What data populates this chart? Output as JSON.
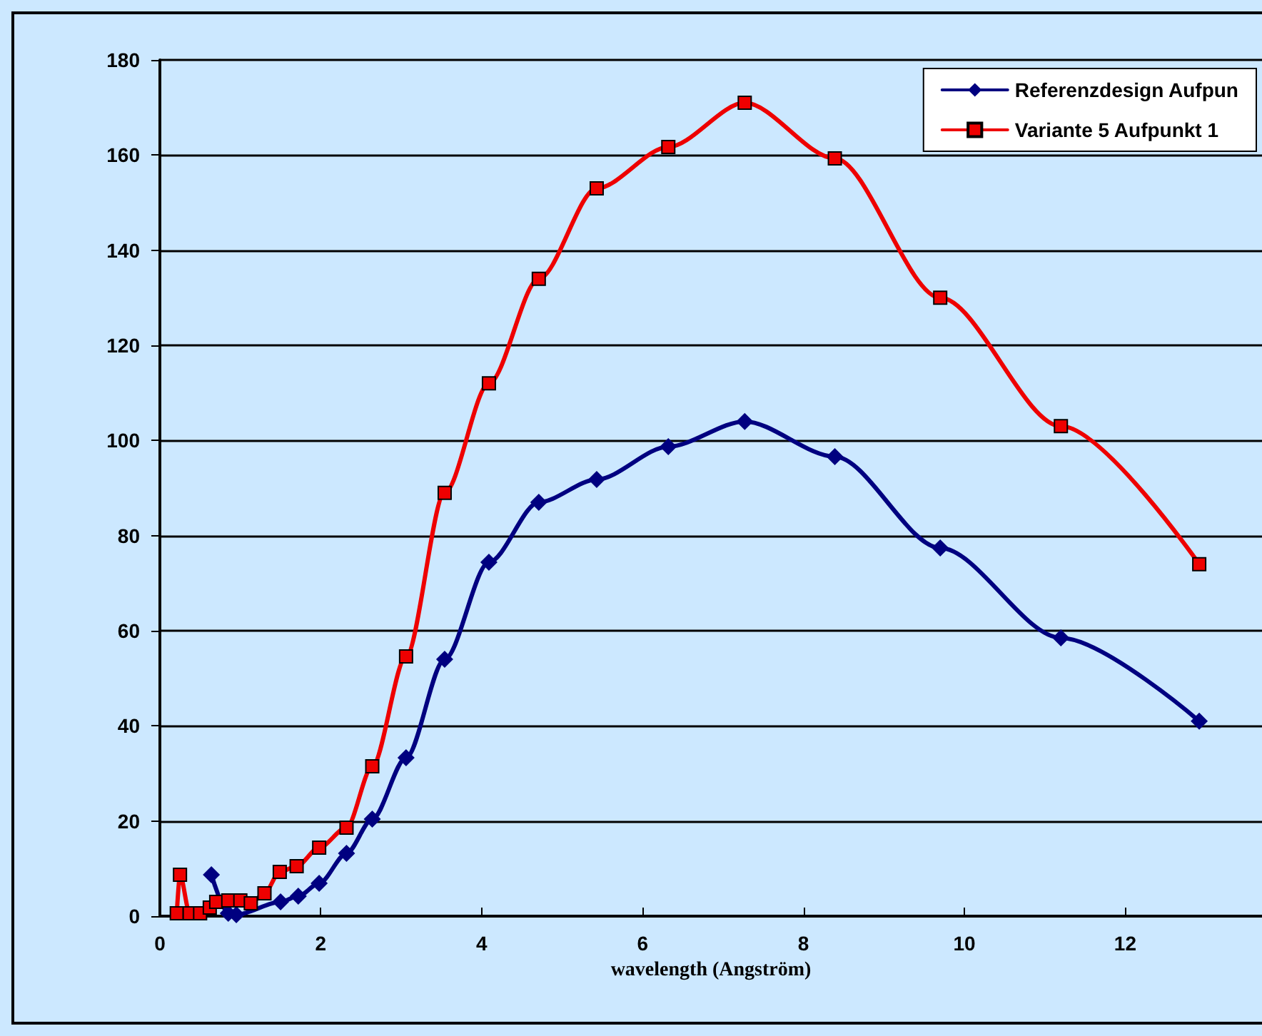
{
  "chart_data": {
    "type": "line",
    "xlabel": "wavelength (Angström)",
    "xlim": [
      0,
      13.7
    ],
    "xticks": [
      0,
      2,
      4,
      6,
      8,
      10,
      12
    ],
    "ylim": [
      0,
      180
    ],
    "yticks": [
      0,
      20,
      40,
      60,
      80,
      100,
      120,
      140,
      160,
      180
    ],
    "grid": "y",
    "legend": "top right",
    "line_style": "solid",
    "series": [
      {
        "name": "Referenzdesign Aufpun",
        "color": "#000080",
        "marker": "diamond",
        "x": [
          0.64,
          0.85,
          0.95,
          1.5,
          1.72,
          1.98,
          2.32,
          2.64,
          3.06,
          3.54,
          4.09,
          4.71,
          5.43,
          6.32,
          7.27,
          8.39,
          9.7,
          11.2,
          12.92
        ],
        "values": [
          8.7,
          0.6,
          0.3,
          3,
          4.2,
          6.9,
          13.2,
          20.4,
          33.3,
          54,
          74.4,
          87,
          91.8,
          98.7,
          104,
          96.6,
          77.4,
          58.5,
          41
        ]
      },
      {
        "name": "Variante 5 Aufpunkt 1",
        "color": "#ee0000",
        "marker": "square",
        "x": [
          0.21,
          0.25,
          0.37,
          0.5,
          0.62,
          0.7,
          0.85,
          1.0,
          1.13,
          1.3,
          1.49,
          1.7,
          1.98,
          2.32,
          2.64,
          3.06,
          3.54,
          4.09,
          4.71,
          5.43,
          6.32,
          7.27,
          8.39,
          9.7,
          11.2,
          12.92
        ],
        "values": [
          0.6,
          8.7,
          0.6,
          0.6,
          1.8,
          3,
          3.3,
          3.3,
          2.7,
          4.8,
          9.3,
          10.5,
          14.4,
          18.6,
          31.5,
          54.6,
          89,
          112,
          134,
          153,
          161.7,
          171,
          159.3,
          130,
          103,
          74
        ]
      }
    ]
  }
}
